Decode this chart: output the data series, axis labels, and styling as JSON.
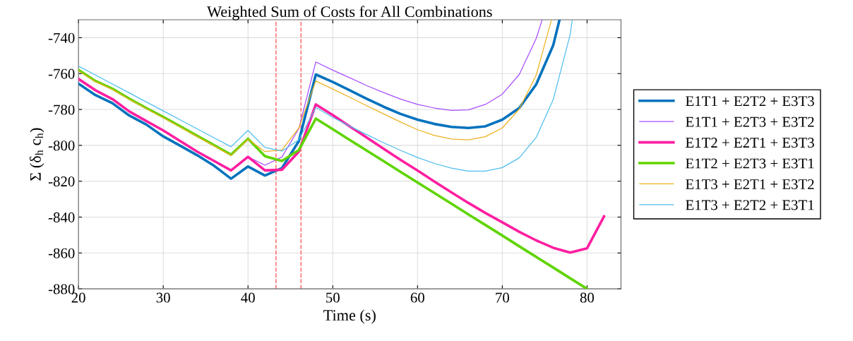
{
  "chart_data": {
    "type": "line",
    "title": "Weighted Sum of Costs for All Combinations",
    "xlabel": "Time (s)",
    "ylabel": "Σ (δ$_{h}$ c$_{h}$)",
    "xlim": [
      20,
      84
    ],
    "ylim": [
      -880,
      -730
    ],
    "xticks": [
      20,
      30,
      40,
      50,
      60,
      70,
      80
    ],
    "yticks": [
      -880,
      -860,
      -840,
      -820,
      -800,
      -780,
      -760,
      -740
    ],
    "grid": true,
    "legend": "right",
    "line_style": "solid",
    "marker": "none",
    "ref_lines": [
      {
        "axis": "x",
        "value": 43.3,
        "color": "#ff6b6b",
        "line_style": "dashed"
      },
      {
        "axis": "x",
        "value": 46.25,
        "color": "#ff6b6b",
        "line_style": "dashed"
      }
    ],
    "series": [
      {
        "name": "E1T1 + E2T2 + E3T3",
        "color": "#0072bd",
        "x": [
          20,
          22,
          24,
          26,
          28,
          30,
          32,
          34,
          36,
          38,
          40,
          42,
          44,
          46,
          48,
          50,
          52,
          54,
          56,
          58,
          60,
          62,
          64,
          66,
          68,
          70,
          72,
          74,
          76,
          76.75
        ],
        "values": [
          -765.6,
          -772,
          -776.5,
          -783.4,
          -788.4,
          -795,
          -800.2,
          -805.5,
          -811.4,
          -818.6,
          -811.8,
          -816.8,
          -812.7,
          -797.6,
          -760.5,
          -764.7,
          -769.3,
          -774,
          -778.5,
          -782.5,
          -785.7,
          -788.1,
          -789.7,
          -790.3,
          -789.4,
          -785.7,
          -779.2,
          -766,
          -744.3,
          -730
        ]
      },
      {
        "name": "E1T1 + E2T3 + E3T2",
        "color": "#a94dff",
        "x": [
          40,
          42,
          44,
          46,
          48,
          50,
          52,
          54,
          56,
          58,
          60,
          62,
          64,
          66,
          68,
          70,
          72,
          74,
          74.7
        ],
        "values": [
          -806.4,
          -811.1,
          -806.5,
          -790.6,
          -753.5,
          -758.1,
          -762.3,
          -766.7,
          -770.6,
          -774.2,
          -777.2,
          -779.2,
          -780.5,
          -780.2,
          -777.2,
          -771.5,
          -760.5,
          -740.4,
          -730
        ]
      },
      {
        "name": "E1T2 + E2T1 + E3T3",
        "color": "#ff1ea0",
        "x": [
          20,
          22,
          24,
          26,
          28,
          30,
          32,
          34,
          36,
          38,
          40,
          42,
          44,
          46,
          48,
          50,
          52,
          54,
          56,
          58,
          60,
          62,
          64,
          66,
          68,
          70,
          72,
          74,
          76,
          78,
          80,
          82
        ],
        "values": [
          -763,
          -769.3,
          -774.2,
          -781.1,
          -786.4,
          -791.7,
          -797.6,
          -803.5,
          -808.7,
          -814,
          -806.4,
          -814,
          -813.6,
          -803.5,
          -777.2,
          -783.1,
          -789.4,
          -795.6,
          -801.9,
          -808.1,
          -814,
          -820.2,
          -826.2,
          -832.1,
          -837.7,
          -842.9,
          -848.2,
          -853,
          -857.1,
          -859.8,
          -857.4,
          -839.6
        ]
      },
      {
        "name": "E1T2 + E2T3 + E3T1",
        "color": "#5fd400",
        "x": [
          20,
          22,
          24,
          26,
          28,
          30,
          32,
          34,
          36,
          38,
          40,
          42,
          44,
          46,
          48,
          50,
          52,
          54,
          56,
          58,
          60,
          62,
          64,
          66,
          68,
          70,
          72,
          74,
          76,
          78,
          80
        ],
        "values": [
          -757.9,
          -764.1,
          -768.4,
          -774,
          -779.2,
          -784.2,
          -789.4,
          -794.7,
          -799.9,
          -805.2,
          -796.3,
          -806.1,
          -808.7,
          -802.6,
          -785.1,
          -791,
          -797,
          -802.9,
          -808.8,
          -814.8,
          -820.7,
          -826.6,
          -832.5,
          -838.5,
          -844.4,
          -850.3,
          -856.3,
          -862.2,
          -868.1,
          -874.1,
          -880
        ]
      },
      {
        "name": "E1T3 + E2T1 + E3T2",
        "color": "#edb120",
        "x": [
          20,
          22,
          24,
          26,
          28,
          30,
          32,
          34,
          36,
          38,
          40,
          42,
          44,
          46,
          48,
          50,
          52,
          54,
          56,
          58,
          60,
          62,
          64,
          66,
          68,
          70,
          72,
          74,
          75.8
        ],
        "values": [
          -758.4,
          -764.5,
          -768.8,
          -774.4,
          -779.6,
          -784.6,
          -789.8,
          -795.1,
          -800.3,
          -805.6,
          -796.6,
          -803.5,
          -802.6,
          -790.3,
          -764.1,
          -768.6,
          -773.2,
          -777.9,
          -782.5,
          -787,
          -791.3,
          -794.5,
          -796.5,
          -797,
          -795.2,
          -790.3,
          -779.8,
          -760.8,
          -730
        ]
      },
      {
        "name": "E1T3 + E2T2 + E3T1",
        "color": "#4dbeee",
        "x": [
          20,
          22,
          24,
          26,
          28,
          30,
          32,
          34,
          36,
          38,
          40,
          42,
          44,
          46,
          48,
          50,
          52,
          54,
          56,
          58,
          60,
          62,
          64,
          66,
          68,
          70,
          72,
          74,
          76,
          78,
          78.25
        ],
        "values": [
          -755.8,
          -760.8,
          -765.8,
          -770.8,
          -775.8,
          -780.8,
          -785.8,
          -790.8,
          -795.8,
          -800.8,
          -791.7,
          -801.2,
          -803.2,
          -796.9,
          -778.9,
          -784.4,
          -789.3,
          -794,
          -798.6,
          -802.8,
          -806.8,
          -810.1,
          -812.7,
          -814.4,
          -814.4,
          -812.4,
          -807,
          -795.6,
          -774.6,
          -738.4,
          -730
        ]
      }
    ]
  }
}
